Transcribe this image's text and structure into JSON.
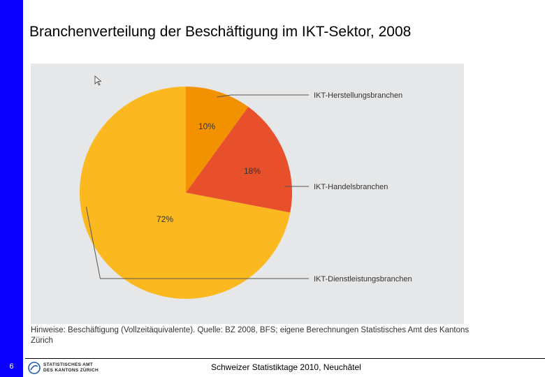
{
  "slide": {
    "title": "Branchenverteilung der Beschäftigung im IKT-Sektor, 2008",
    "page_number": "6",
    "footer": "Schweizer Statistiktage 2010, Neuchâtel",
    "logo": {
      "line1": "STATISTISCHES AMT",
      "line2": "DES KANTONS ZÜRICH"
    }
  },
  "chart_data": {
    "type": "pie",
    "title": "Branchenverteilung der Beschäftigung im IKT-Sektor, 2008",
    "categories": [
      "IKT-Herstellungsbranchen",
      "IKT-Handelsbranchen",
      "IKT-Dienstleistungsbranchen"
    ],
    "values": [
      10,
      18,
      72
    ],
    "value_labels": [
      "10%",
      "18%",
      "72%"
    ],
    "colors": [
      "#f39200",
      "#e8502b",
      "#fbb81f"
    ],
    "note": "Hinweise: Beschäftigung (Vollzeitäquivalente). Quelle: BZ 2008, BFS; eigene Berechnungen Statistisches Amt des Kantons Zürich"
  }
}
